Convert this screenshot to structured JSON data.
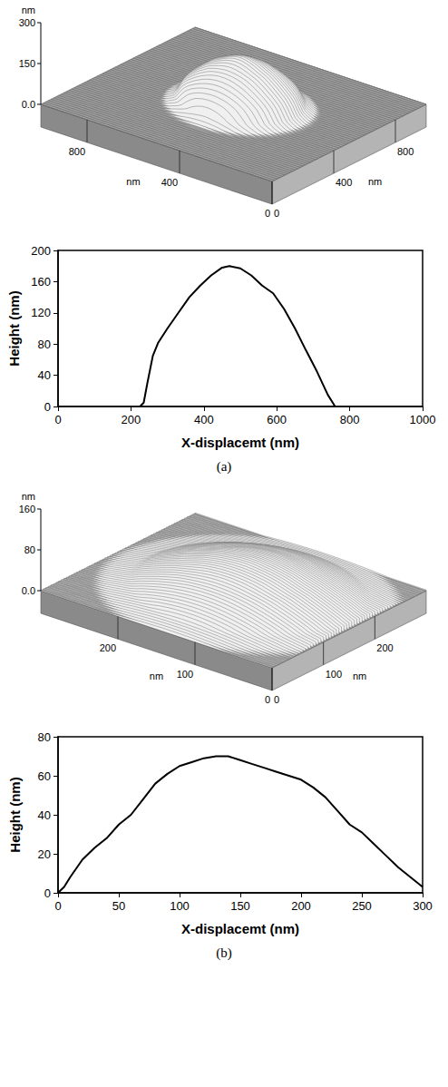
{
  "panel_labels": [
    "(a)",
    "(b)"
  ],
  "afm_images": [
    {
      "z_label": "nm",
      "zlim": [
        0,
        300
      ],
      "zticks": [
        {
          "value": 0,
          "label": "0.0"
        },
        150,
        300
      ],
      "x_label": "nm",
      "xlim": [
        0,
        1000
      ],
      "xticks": [
        0,
        400,
        800
      ],
      "y_label": "nm",
      "ylim": [
        0,
        1000
      ],
      "yticks": [
        0,
        400,
        800
      ]
    },
    {
      "z_label": "nm",
      "zlim": [
        0,
        160
      ],
      "zticks": [
        {
          "value": 0,
          "label": "0.0"
        },
        80,
        160
      ],
      "x_label": "nm",
      "xlim": [
        0,
        300
      ],
      "xticks": [
        0,
        100,
        200
      ],
      "y_label": "nm",
      "ylim": [
        0,
        300
      ],
      "yticks": [
        0,
        100,
        200
      ]
    }
  ],
  "chart_data": [
    {
      "type": "line",
      "x_label": "X-displacemt (nm)",
      "y_label": "Height (nm)",
      "color": "#000000",
      "x": [
        225,
        235,
        245,
        260,
        275,
        300,
        330,
        360,
        390,
        420,
        450,
        470,
        500,
        530,
        560,
        590,
        620,
        650,
        680,
        710,
        740,
        760
      ],
      "values": [
        0,
        5,
        30,
        65,
        82,
        100,
        120,
        140,
        155,
        168,
        178,
        180,
        177,
        168,
        155,
        145,
        125,
        100,
        72,
        45,
        15,
        0
      ],
      "xlim": [
        0,
        1000
      ],
      "xticks": [
        0,
        200,
        400,
        600,
        800,
        1000
      ],
      "ylim": [
        0,
        200
      ],
      "yticks": [
        0,
        40,
        80,
        120,
        160,
        200
      ]
    },
    {
      "type": "line",
      "x_label": "X-displacemt (nm)",
      "y_label": "Height (nm)",
      "color": "#000000",
      "x": [
        0,
        5,
        10,
        20,
        30,
        40,
        50,
        60,
        70,
        80,
        90,
        100,
        110,
        120,
        130,
        140,
        150,
        160,
        170,
        180,
        190,
        200,
        210,
        220,
        230,
        240,
        250,
        260,
        270,
        280,
        290,
        300
      ],
      "values": [
        0,
        3,
        8,
        17,
        23,
        28,
        35,
        40,
        48,
        56,
        61,
        65,
        67,
        69,
        70,
        70,
        68,
        66,
        64,
        62,
        60,
        58,
        54,
        49,
        42,
        35,
        31,
        25,
        19,
        13,
        8,
        3
      ],
      "xlim": [
        0,
        300
      ],
      "xticks": [
        0,
        50,
        100,
        150,
        200,
        250,
        300
      ],
      "ylim": [
        0,
        80
      ],
      "yticks": [
        0,
        20,
        40,
        60,
        80
      ]
    }
  ]
}
